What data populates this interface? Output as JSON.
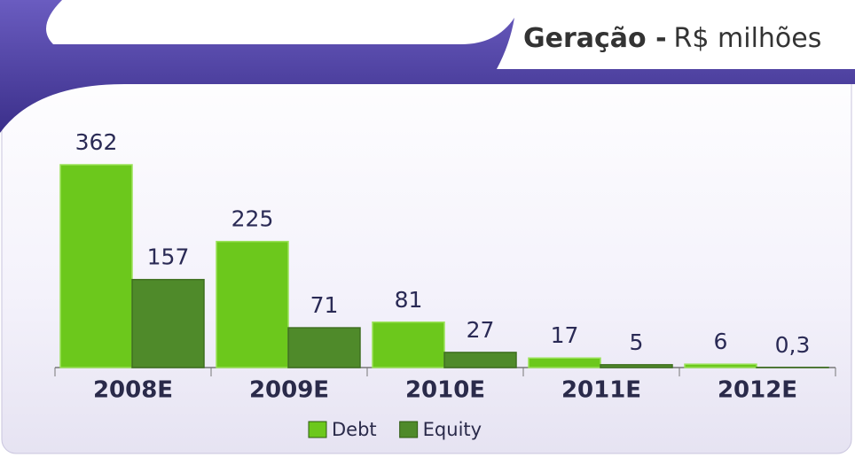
{
  "chart_data": {
    "type": "bar",
    "title": "Geração -",
    "subtitle": "R$ milhões",
    "categories": [
      "2008E",
      "2009E",
      "2010E",
      "2011E",
      "2012E"
    ],
    "series": [
      {
        "name": "Debt",
        "color": "#6cc81c",
        "values": [
          362,
          225,
          81,
          17,
          6
        ]
      },
      {
        "name": "Equity",
        "color": "#4f8a2a",
        "values": [
          157,
          71,
          27,
          5,
          0.3
        ],
        "value_labels": [
          "157",
          "71",
          "27",
          "5",
          "0,3"
        ]
      }
    ],
    "legend": "bottom"
  }
}
